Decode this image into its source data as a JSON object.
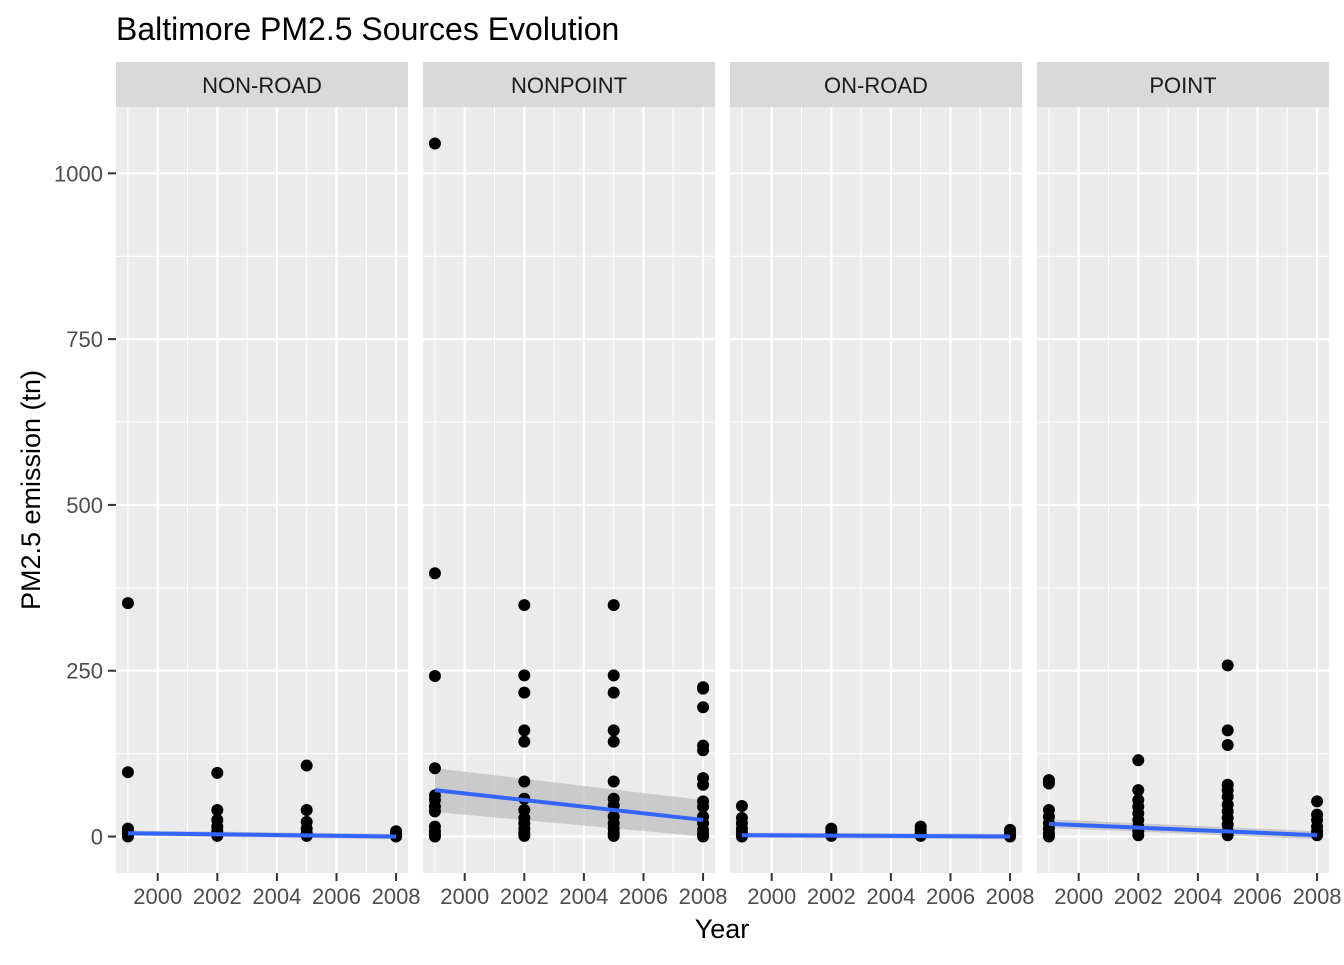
{
  "chart_data": {
    "type": "scatter",
    "title": "Baltimore PM2.5 Sources Evolution",
    "xlabel": "Year",
    "ylabel": "PM2.5 emission (tn)",
    "xlim": [
      1998.6,
      2008.4
    ],
    "ylim": [
      -55,
      1100
    ],
    "xticks": [
      2000,
      2002,
      2004,
      2006,
      2008
    ],
    "yticks": [
      0,
      250,
      500,
      750,
      1000
    ],
    "grid": true,
    "legend": "none",
    "colors": {
      "panel_bg": "#ebebeb",
      "grid": "#ffffff",
      "strip_bg": "#d9d9d9",
      "points": "#000000",
      "smooth_line": "#3366ff",
      "smooth_band": "#bfbfbf",
      "axis_text": "#4d4d4d",
      "title_text": "#000000"
    },
    "facets": [
      {
        "label": "NON-ROAD",
        "points": [
          [
            1999,
            352
          ],
          [
            1999,
            97
          ],
          [
            1999,
            12
          ],
          [
            1999,
            7
          ],
          [
            1999,
            4
          ],
          [
            1999,
            2
          ],
          [
            1999,
            0
          ],
          [
            2002,
            96
          ],
          [
            2002,
            40
          ],
          [
            2002,
            25
          ],
          [
            2002,
            15
          ],
          [
            2002,
            8
          ],
          [
            2002,
            4
          ],
          [
            2002,
            1
          ],
          [
            2005,
            107
          ],
          [
            2005,
            40
          ],
          [
            2005,
            22
          ],
          [
            2005,
            12
          ],
          [
            2005,
            5
          ],
          [
            2005,
            1
          ],
          [
            2008,
            8
          ],
          [
            2008,
            5
          ],
          [
            2008,
            3
          ],
          [
            2008,
            1
          ],
          [
            2008,
            0
          ]
        ],
        "smooth": {
          "start": [
            1999,
            5
          ],
          "end": [
            2008,
            0
          ],
          "band_start": [
            1,
            9
          ],
          "band_end": [
            -4,
            4
          ]
        }
      },
      {
        "label": "NONPOINT",
        "points": [
          [
            1999,
            1045
          ],
          [
            1999,
            397
          ],
          [
            1999,
            242
          ],
          [
            1999,
            103
          ],
          [
            1999,
            62
          ],
          [
            1999,
            55
          ],
          [
            1999,
            45
          ],
          [
            1999,
            38
          ],
          [
            1999,
            15
          ],
          [
            1999,
            8
          ],
          [
            1999,
            3
          ],
          [
            1999,
            0
          ],
          [
            2002,
            349
          ],
          [
            2002,
            243
          ],
          [
            2002,
            217
          ],
          [
            2002,
            160
          ],
          [
            2002,
            143
          ],
          [
            2002,
            83
          ],
          [
            2002,
            57
          ],
          [
            2002,
            40
          ],
          [
            2002,
            28
          ],
          [
            2002,
            20
          ],
          [
            2002,
            12
          ],
          [
            2002,
            5
          ],
          [
            2002,
            1
          ],
          [
            2005,
            349
          ],
          [
            2005,
            243
          ],
          [
            2005,
            217
          ],
          [
            2005,
            160
          ],
          [
            2005,
            143
          ],
          [
            2005,
            83
          ],
          [
            2005,
            57
          ],
          [
            2005,
            47
          ],
          [
            2005,
            30
          ],
          [
            2005,
            20
          ],
          [
            2005,
            12
          ],
          [
            2005,
            5
          ],
          [
            2005,
            1
          ],
          [
            2008,
            225
          ],
          [
            2008,
            223
          ],
          [
            2008,
            195
          ],
          [
            2008,
            137
          ],
          [
            2008,
            130
          ],
          [
            2008,
            88
          ],
          [
            2008,
            78
          ],
          [
            2008,
            53
          ],
          [
            2008,
            45
          ],
          [
            2008,
            30
          ],
          [
            2008,
            20
          ],
          [
            2008,
            10
          ],
          [
            2008,
            4
          ],
          [
            2008,
            0
          ]
        ],
        "smooth": {
          "start": [
            1999,
            70
          ],
          "end": [
            2008,
            25
          ],
          "band_start": [
            37,
            103
          ],
          "band_end": [
            0,
            55
          ]
        }
      },
      {
        "label": "ON-ROAD",
        "points": [
          [
            1999,
            46
          ],
          [
            1999,
            28
          ],
          [
            1999,
            20
          ],
          [
            1999,
            12
          ],
          [
            1999,
            6
          ],
          [
            1999,
            2
          ],
          [
            1999,
            0
          ],
          [
            2002,
            12
          ],
          [
            2002,
            8
          ],
          [
            2002,
            4
          ],
          [
            2002,
            1
          ],
          [
            2005,
            15
          ],
          [
            2005,
            10
          ],
          [
            2005,
            5
          ],
          [
            2005,
            1
          ],
          [
            2008,
            10
          ],
          [
            2008,
            6
          ],
          [
            2008,
            2
          ],
          [
            2008,
            0
          ]
        ],
        "smooth": {
          "start": [
            1999,
            2
          ],
          "end": [
            2008,
            0
          ],
          "band_start": [
            -2,
            6
          ],
          "band_end": [
            -4,
            4
          ]
        }
      },
      {
        "label": "POINT",
        "points": [
          [
            1999,
            85
          ],
          [
            1999,
            80
          ],
          [
            1999,
            40
          ],
          [
            1999,
            30
          ],
          [
            1999,
            20
          ],
          [
            1999,
            12
          ],
          [
            1999,
            5
          ],
          [
            1999,
            0
          ],
          [
            2002,
            115
          ],
          [
            2002,
            70
          ],
          [
            2002,
            55
          ],
          [
            2002,
            45
          ],
          [
            2002,
            35
          ],
          [
            2002,
            25
          ],
          [
            2002,
            15
          ],
          [
            2002,
            8
          ],
          [
            2002,
            2
          ],
          [
            2005,
            258
          ],
          [
            2005,
            160
          ],
          [
            2005,
            138
          ],
          [
            2005,
            78
          ],
          [
            2005,
            70
          ],
          [
            2005,
            60
          ],
          [
            2005,
            48
          ],
          [
            2005,
            38
          ],
          [
            2005,
            28
          ],
          [
            2005,
            18
          ],
          [
            2005,
            8
          ],
          [
            2005,
            2
          ],
          [
            2008,
            53
          ],
          [
            2008,
            33
          ],
          [
            2008,
            25
          ],
          [
            2008,
            15
          ],
          [
            2008,
            8
          ],
          [
            2008,
            2
          ]
        ],
        "smooth": {
          "start": [
            1999,
            19
          ],
          "end": [
            2008,
            2
          ],
          "band_start": [
            13,
            26
          ],
          "band_end": [
            -4,
            8
          ]
        }
      }
    ]
  }
}
